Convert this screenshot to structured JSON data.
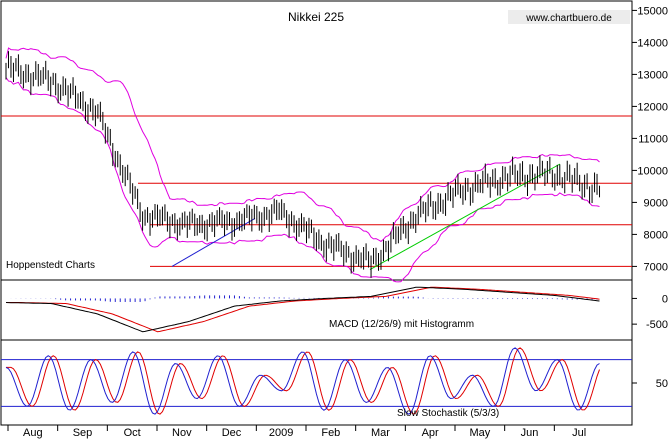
{
  "chart_data": [
    {
      "type": "candlestick",
      "title": "Nikkei 225",
      "watermark": "www.chartbuero.de",
      "annotation": "Hoppenstedt Charts",
      "x_tick_labels": [
        "Aug",
        "Sep",
        "Oct",
        "Nov",
        "Dec",
        "2009",
        "Feb",
        "Mar",
        "Apr",
        "May",
        "Jun",
        "Jul"
      ],
      "y_ticks": [
        15000,
        14000,
        13000,
        12000,
        11000,
        10000,
        9000,
        8000,
        7000
      ],
      "ylim": [
        6700,
        15200
      ],
      "grid": false,
      "series": [
        {
          "name": "",
          "x": [
            "Aug",
            "Sep",
            "Oct",
            "Oct",
            "Nov",
            "Dec",
            "2009",
            "Feb",
            "Mar",
            "Apr",
            "May",
            "Jun",
            "Jul",
            "Jul"
          ],
          "values": [
            13200,
            12800,
            11800,
            8600,
            8300,
            8400,
            8700,
            7700,
            7100,
            8600,
            9400,
            9800,
            9900,
            9400
          ]
        }
      ],
      "horizontal_levels": [
        11700,
        9600,
        8300,
        7000
      ],
      "line_colors": {
        "price": "#000000",
        "bands": "#e000e0",
        "levels": "#e00000",
        "trend_up": "#00cc00",
        "trend_down": "#2020d0"
      }
    },
    {
      "type": "line",
      "label": "MACD (12/26/9) mit Histogramm",
      "y_ticks": [
        0,
        -500
      ],
      "ylim": [
        -750,
        300
      ],
      "series": [
        {
          "name": "",
          "values": [
            -80,
            -100,
            -300,
            -650,
            -450,
            -150,
            -50,
            0,
            40,
            220,
            180,
            120,
            60,
            -50
          ]
        }
      ],
      "line_colors": {
        "macd": "#000000",
        "signal": "#e00000",
        "histogram": "#2020d0"
      }
    },
    {
      "type": "line",
      "label": "Slow Stochastik (5/3/3)",
      "y_ticks": [
        50
      ],
      "ylim": [
        0,
        100
      ],
      "reference_levels": [
        80,
        20
      ],
      "series": [
        {
          "name": "",
          "values": [
            70,
            20,
            85,
            15,
            80,
            25,
            90,
            10,
            75,
            30,
            85,
            20,
            60,
            40,
            90,
            15,
            80,
            25,
            70,
            10,
            85,
            30,
            60,
            20,
            95,
            40,
            80,
            15,
            75
          ]
        }
      ],
      "line_colors": {
        "k": "#2020d0",
        "d": "#e00000",
        "levels": "#2020d0"
      }
    }
  ]
}
